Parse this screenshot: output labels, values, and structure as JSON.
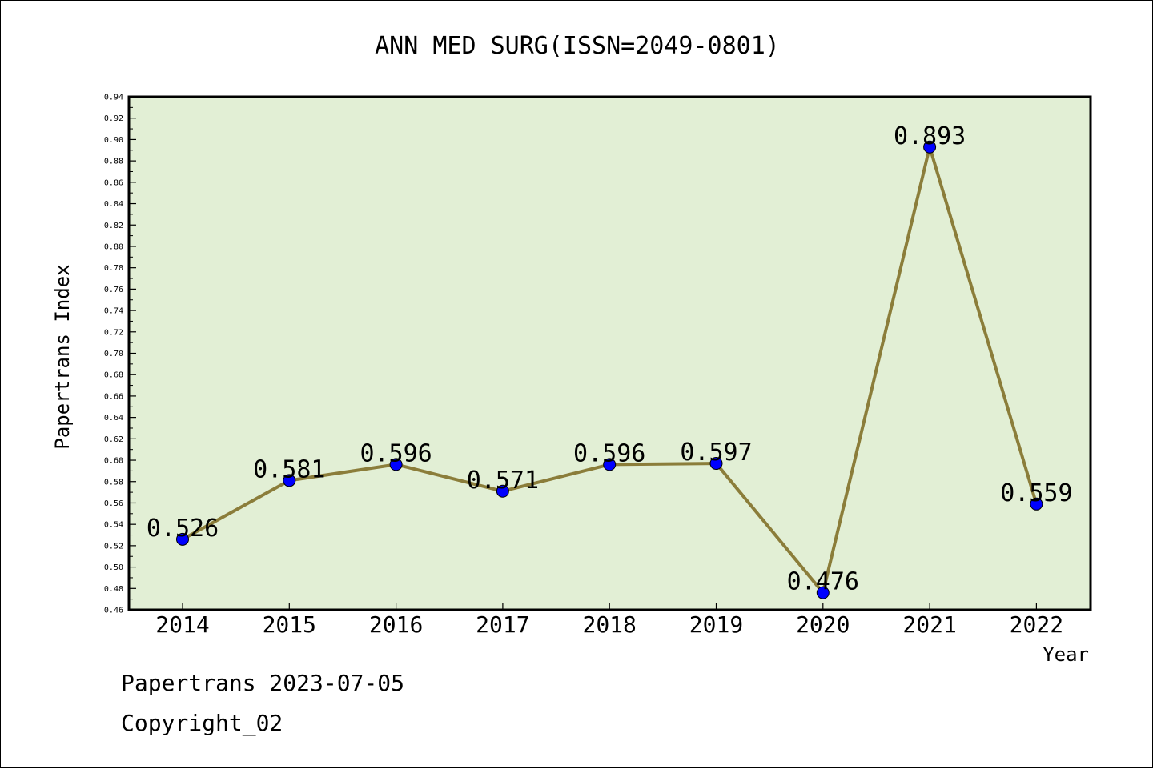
{
  "chart_data": {
    "type": "line",
    "title": "ANN MED SURG(ISSN=2049-0801)",
    "xlabel": "Year",
    "ylabel": "Papertrans Index",
    "categories": [
      "2014",
      "2015",
      "2016",
      "2017",
      "2018",
      "2019",
      "2020",
      "2021",
      "2022"
    ],
    "series": [
      {
        "values": [
          0.526,
          0.581,
          0.596,
          0.571,
          0.596,
          0.597,
          0.476,
          0.893,
          0.559
        ],
        "labels": [
          "0.526",
          "0.581",
          "0.596",
          "0.571",
          "0.596",
          "0.597",
          "0.476",
          "0.893",
          "0.559"
        ],
        "line_color": "#8b7d3a",
        "marker_color": "#0000ff"
      }
    ],
    "ylim": [
      0.46,
      0.94
    ],
    "y_tick_labels": [
      "0.46",
      "0.48",
      "0.50",
      "0.52",
      "0.54",
      "0.56",
      "0.58",
      "0.60",
      "0.62",
      "0.64",
      "0.66",
      "0.68",
      "0.70",
      "0.72",
      "0.74",
      "0.76",
      "0.78",
      "0.80",
      "0.82",
      "0.84",
      "0.86",
      "0.88",
      "0.90",
      "0.92",
      "0.94"
    ],
    "grid": false,
    "legend": "none",
    "plot_background": "#e2efd5"
  },
  "footer": {
    "date_line": "Papertrans 2023-07-05",
    "copyright_line": "Copyright_02"
  }
}
